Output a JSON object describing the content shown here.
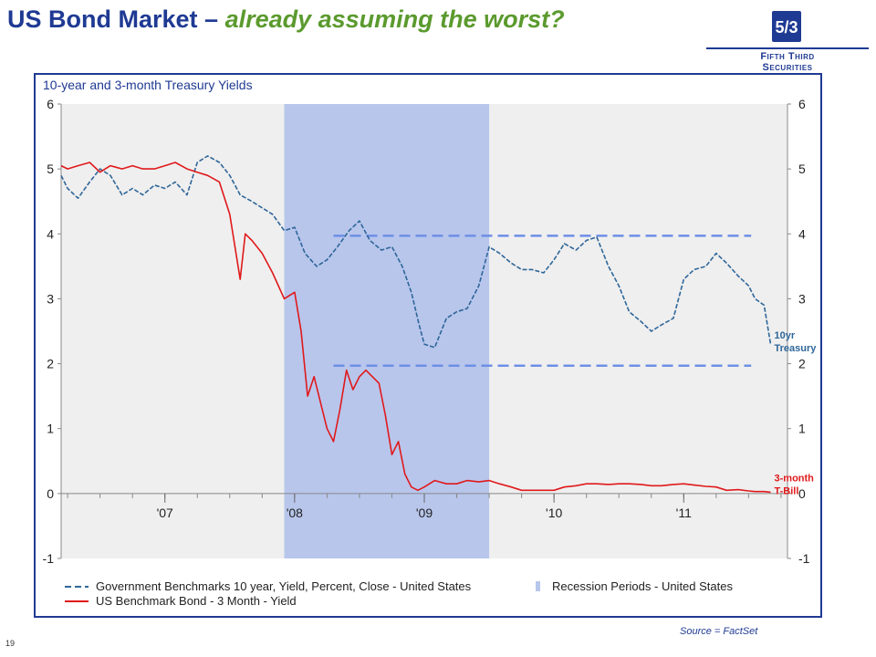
{
  "slide": {
    "title_main": "US Bond Market",
    "title_sep": " – ",
    "title_sub": "already assuming the worst?",
    "page_number": "19",
    "source": "Source = FactSet",
    "logo_line1": "Fifth Third",
    "logo_line2": "Securities",
    "brand_color": "#1f3a93",
    "accent_color": "#5b9a2e"
  },
  "chart_data": {
    "type": "line",
    "title": "10-year and 3-month Treasury Yields",
    "ylim": [
      -1,
      6
    ],
    "yticks": [
      6,
      5,
      4,
      3,
      2,
      1,
      0,
      -1
    ],
    "xlim": [
      2006.2,
      2011.8
    ],
    "xticks": [
      {
        "label": "'07",
        "value": 2007.0
      },
      {
        "label": "'08",
        "value": 2008.0
      },
      {
        "label": "'09",
        "value": 2009.0
      },
      {
        "label": "'10",
        "value": 2010.0
      },
      {
        "label": "'11",
        "value": 2011.0
      }
    ],
    "grid": false,
    "legend": "bottom",
    "recession": {
      "name": "Recession Periods - United States",
      "start": 2007.92,
      "end": 2009.5,
      "color": "#b8c6ec"
    },
    "series": [
      {
        "name": "Government Benchmarks 10 year, Yield, Percent, Close - United States",
        "color": "#2f6699",
        "dash": true,
        "x": [
          2006.2,
          2006.25,
          2006.33,
          2006.42,
          2006.5,
          2006.58,
          2006.67,
          2006.75,
          2006.83,
          2006.92,
          2007.0,
          2007.08,
          2007.17,
          2007.25,
          2007.33,
          2007.42,
          2007.5,
          2007.58,
          2007.67,
          2007.75,
          2007.83,
          2007.92,
          2008.0,
          2008.08,
          2008.17,
          2008.25,
          2008.33,
          2008.42,
          2008.5,
          2008.58,
          2008.67,
          2008.75,
          2008.83,
          2008.9,
          2008.96,
          2009.0,
          2009.08,
          2009.17,
          2009.25,
          2009.33,
          2009.42,
          2009.5,
          2009.58,
          2009.67,
          2009.75,
          2009.83,
          2009.92,
          2010.0,
          2010.08,
          2010.17,
          2010.25,
          2010.33,
          2010.42,
          2010.5,
          2010.58,
          2010.67,
          2010.75,
          2010.83,
          2010.92,
          2011.0,
          2011.08,
          2011.17,
          2011.25,
          2011.33,
          2011.42,
          2011.5,
          2011.55,
          2011.62,
          2011.67
        ],
        "y": [
          4.9,
          4.7,
          4.55,
          4.8,
          5.0,
          4.9,
          4.6,
          4.7,
          4.6,
          4.75,
          4.7,
          4.8,
          4.6,
          5.1,
          5.2,
          5.1,
          4.9,
          4.6,
          4.5,
          4.4,
          4.3,
          4.05,
          4.1,
          3.7,
          3.5,
          3.6,
          3.8,
          4.05,
          4.2,
          3.9,
          3.75,
          3.8,
          3.5,
          3.1,
          2.6,
          2.3,
          2.25,
          2.7,
          2.8,
          2.85,
          3.2,
          3.8,
          3.7,
          3.55,
          3.45,
          3.45,
          3.4,
          3.6,
          3.85,
          3.75,
          3.9,
          3.95,
          3.5,
          3.2,
          2.8,
          2.65,
          2.5,
          2.6,
          2.7,
          3.3,
          3.45,
          3.5,
          3.7,
          3.55,
          3.35,
          3.2,
          3.0,
          2.9,
          2.3
        ]
      },
      {
        "name": "US Benchmark Bond - 3 Month - Yield",
        "color": "#e0191b",
        "dash": false,
        "x": [
          2006.2,
          2006.25,
          2006.33,
          2006.42,
          2006.5,
          2006.58,
          2006.67,
          2006.75,
          2006.83,
          2006.92,
          2007.0,
          2007.08,
          2007.17,
          2007.25,
          2007.33,
          2007.42,
          2007.5,
          2007.58,
          2007.62,
          2007.67,
          2007.75,
          2007.83,
          2007.92,
          2008.0,
          2008.05,
          2008.1,
          2008.15,
          2008.2,
          2008.25,
          2008.3,
          2008.35,
          2008.4,
          2008.45,
          2008.5,
          2008.55,
          2008.6,
          2008.65,
          2008.7,
          2008.75,
          2008.8,
          2008.85,
          2008.9,
          2008.95,
          2009.0,
          2009.08,
          2009.17,
          2009.25,
          2009.33,
          2009.42,
          2009.5,
          2009.58,
          2009.67,
          2009.75,
          2009.83,
          2009.92,
          2010.0,
          2010.08,
          2010.17,
          2010.25,
          2010.33,
          2010.42,
          2010.5,
          2010.58,
          2010.67,
          2010.75,
          2010.83,
          2010.92,
          2011.0,
          2011.08,
          2011.17,
          2011.25,
          2011.33,
          2011.42,
          2011.5,
          2011.55,
          2011.62,
          2011.67
        ],
        "y": [
          5.05,
          5.0,
          5.05,
          5.1,
          4.95,
          5.05,
          5.0,
          5.05,
          5.0,
          5.0,
          5.05,
          5.1,
          5.0,
          4.95,
          4.9,
          4.8,
          4.3,
          3.3,
          4.0,
          3.9,
          3.7,
          3.4,
          3.0,
          3.1,
          2.5,
          1.5,
          1.8,
          1.4,
          1.0,
          0.8,
          1.3,
          1.9,
          1.6,
          1.8,
          1.9,
          1.8,
          1.7,
          1.2,
          0.6,
          0.8,
          0.3,
          0.1,
          0.05,
          0.1,
          0.2,
          0.15,
          0.15,
          0.2,
          0.18,
          0.2,
          0.15,
          0.1,
          0.05,
          0.05,
          0.05,
          0.05,
          0.1,
          0.12,
          0.15,
          0.15,
          0.14,
          0.15,
          0.15,
          0.14,
          0.12,
          0.12,
          0.14,
          0.15,
          0.13,
          0.11,
          0.1,
          0.05,
          0.06,
          0.04,
          0.03,
          0.03,
          0.02
        ]
      }
    ],
    "reference_lines": [
      {
        "y": 3.97,
        "x_start": 2008.3,
        "x_end": 2011.52,
        "color": "#6e8fe6"
      },
      {
        "y": 1.97,
        "x_start": 2008.3,
        "x_end": 2011.52,
        "color": "#6e8fe6"
      }
    ],
    "annotations": [
      {
        "text": "10yr",
        "text2": "Treasury",
        "x": 2011.67,
        "y": 2.3,
        "color": "#2f6699"
      },
      {
        "text": "3-month",
        "text2": "T-Bill",
        "x": 2011.67,
        "y": 0.1,
        "color": "#e0191b"
      }
    ]
  }
}
